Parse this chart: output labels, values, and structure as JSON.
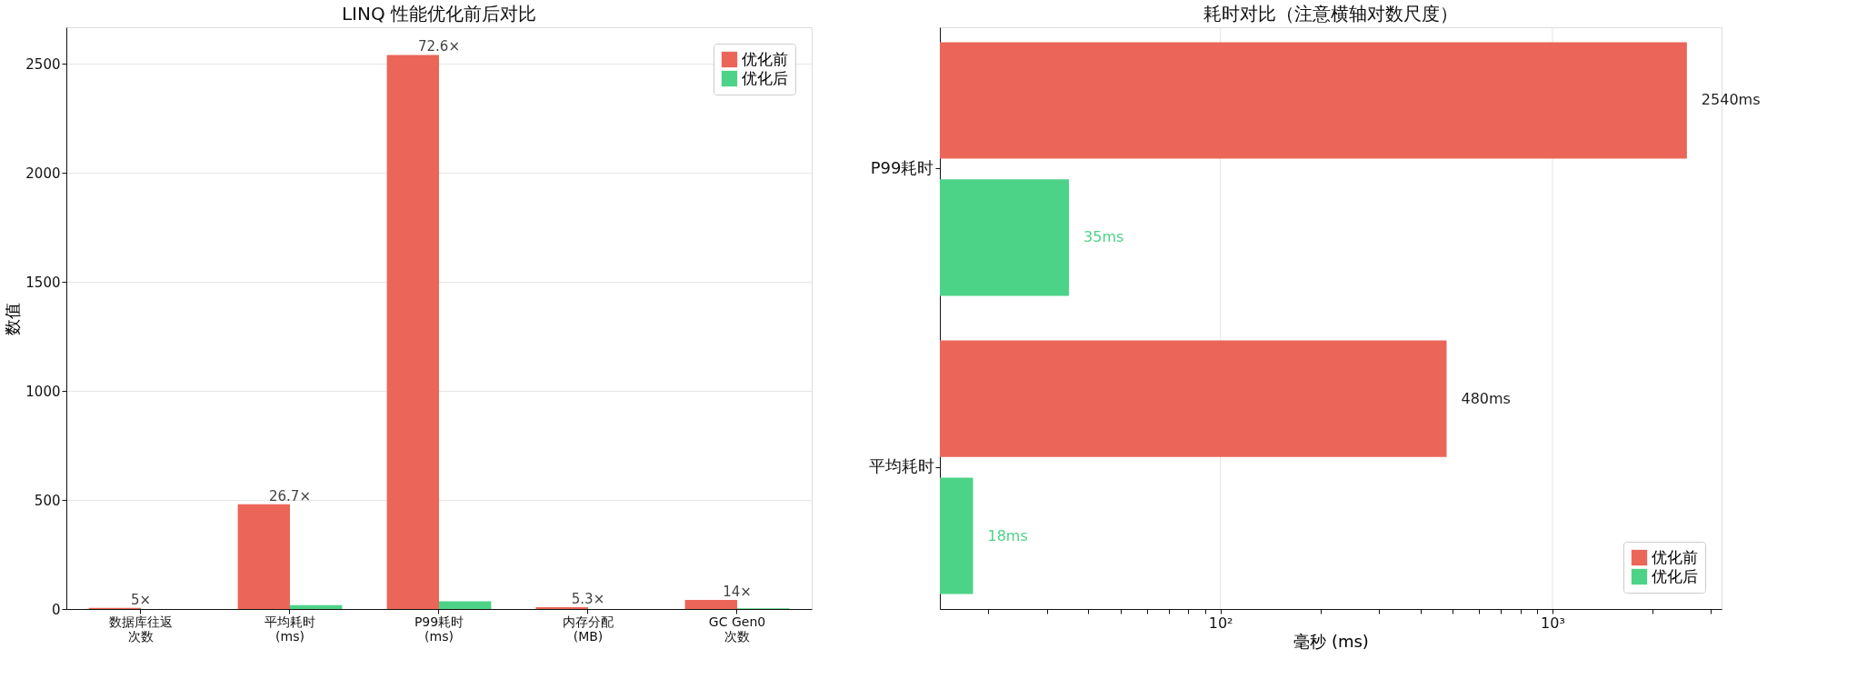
{
  "chart_data": [
    {
      "type": "bar",
      "title": "LINQ 性能优化前后对比",
      "ylabel": "数值",
      "categories": [
        "数据库往返次数",
        "平均耗时 (ms)",
        "P99耗时 (ms)",
        "内存分配 (MB)",
        "GC Gen0 次数"
      ],
      "series": [
        {
          "name": "优化前",
          "color": "#eb6658",
          "values": [
            5,
            480,
            2540,
            8,
            42
          ]
        },
        {
          "name": "优化后",
          "color": "#4cd387",
          "values": [
            null,
            18,
            35,
            null,
            3
          ]
        }
      ],
      "ylim": [
        0,
        2667
      ],
      "yticks": [
        0,
        500,
        1000,
        1500,
        2000,
        2500
      ],
      "grid": "y",
      "legend": "top right",
      "annotations": [
        {
          "text": "5×",
          "x": "数据库往返次数",
          "y": 5
        },
        {
          "text": "26.7×",
          "x": "平均耗时 (ms)",
          "y": 480
        },
        {
          "text": "72.6×",
          "x": "P99耗时 (ms)",
          "y": 2540
        },
        {
          "text": "5.3×",
          "x": "内存分配 (MB)",
          "y": 8
        },
        {
          "text": "14×",
          "x": "GC Gen0 次数",
          "y": 42
        }
      ]
    },
    {
      "type": "bar",
      "orientation": "horizontal",
      "title": "耗时对比（注意横轴对数尺度）",
      "xlabel": "毫秒 (ms)",
      "categories": [
        "P99耗时",
        "平均耗时"
      ],
      "series": [
        {
          "name": "优化前",
          "color": "#eb6658",
          "values": [
            2540,
            480
          ],
          "value_labels": [
            "2540ms",
            "480ms"
          ]
        },
        {
          "name": "优化后",
          "color": "#4cd387",
          "values": [
            35,
            18
          ],
          "value_labels": [
            "35ms",
            "18ms"
          ]
        }
      ],
      "log": "x",
      "xlim": [
        14.3,
        3230
      ],
      "xticks": [
        {
          "value": 20,
          "label": null
        },
        {
          "value": 30,
          "label": null
        },
        {
          "value": 40,
          "label": null
        },
        {
          "value": 50,
          "label": null
        },
        {
          "value": 60,
          "label": null
        },
        {
          "value": 70,
          "label": null
        },
        {
          "value": 80,
          "label": null
        },
        {
          "value": 90,
          "label": null
        },
        {
          "value": 100,
          "label": "10²"
        },
        {
          "value": 200,
          "label": null
        },
        {
          "value": 300,
          "label": null
        },
        {
          "value": 400,
          "label": null
        },
        {
          "value": 500,
          "label": null
        },
        {
          "value": 600,
          "label": null
        },
        {
          "value": 700,
          "label": null
        },
        {
          "value": 800,
          "label": null
        },
        {
          "value": 900,
          "label": null
        },
        {
          "value": 1000,
          "label": "10³"
        },
        {
          "value": 2000,
          "label": null
        },
        {
          "value": 3000,
          "label": null
        }
      ],
      "grid": "x",
      "legend": "bottom right"
    }
  ]
}
